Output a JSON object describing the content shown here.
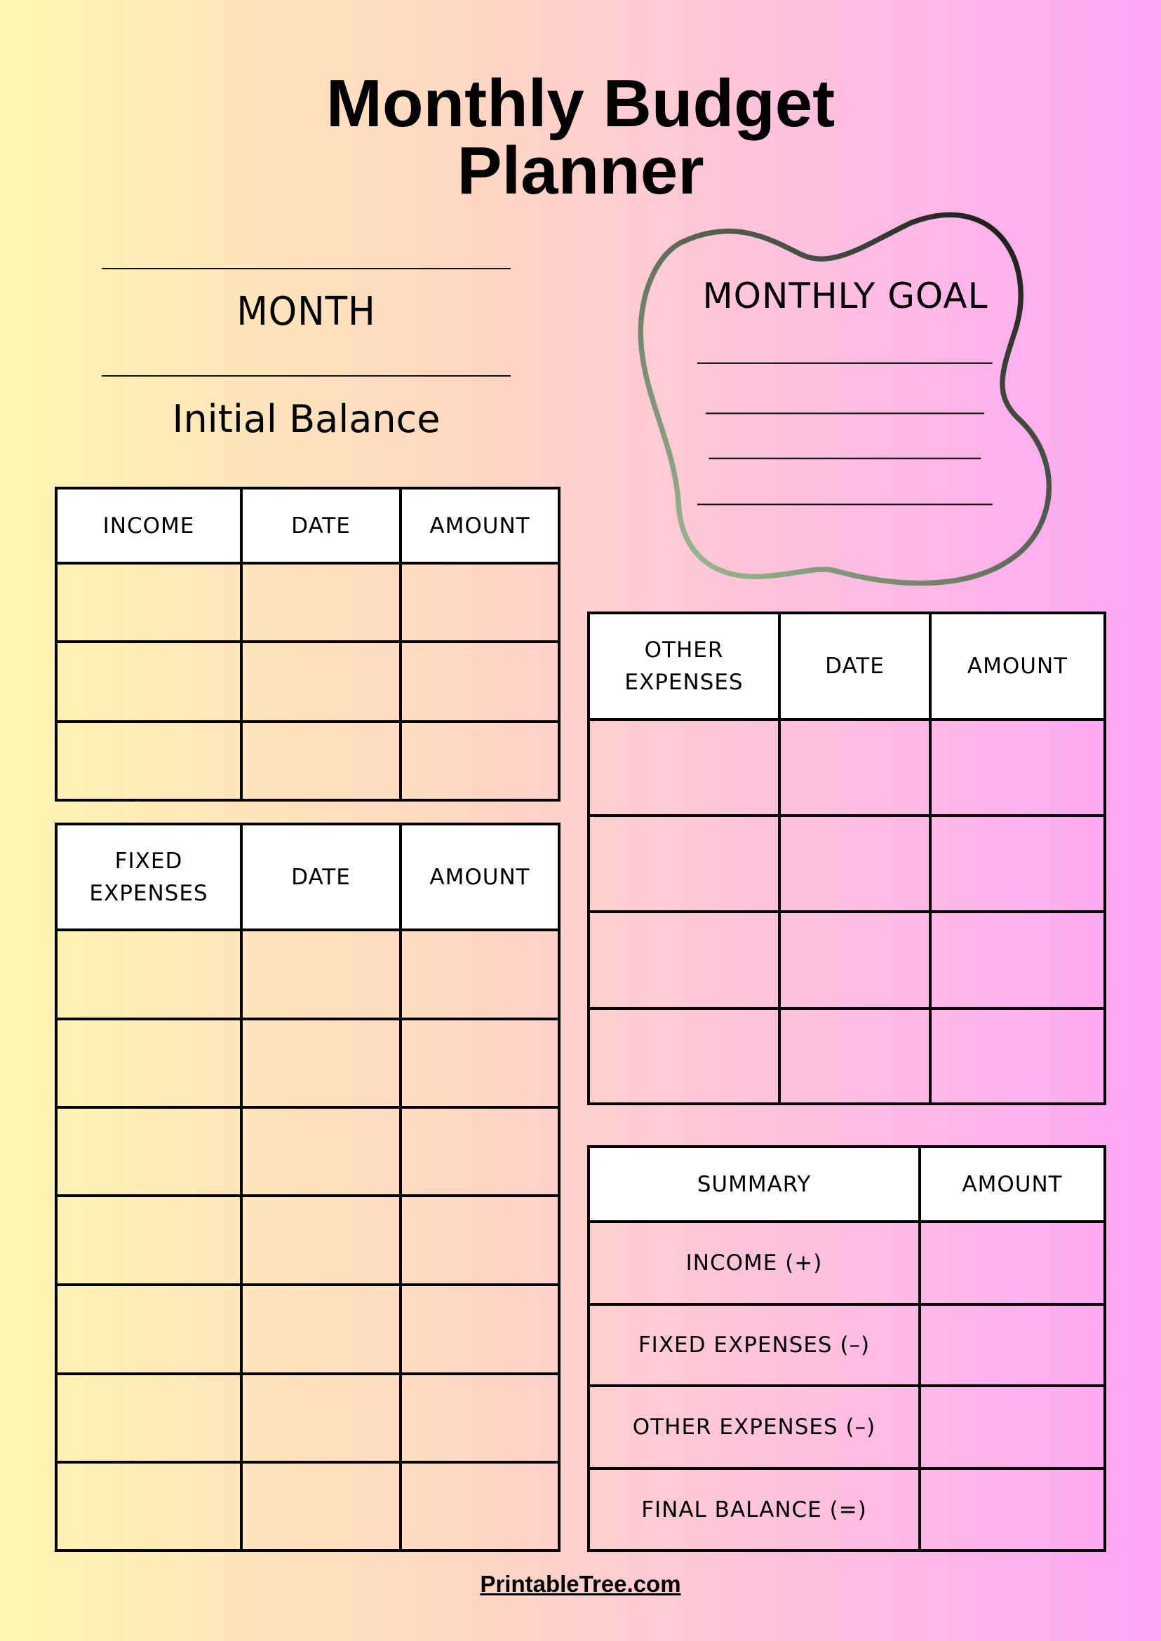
{
  "title": {
    "line1": "Monthly Budget",
    "line2": "Planner"
  },
  "month_label": "MONTH",
  "initial_balance_label": "Initial Balance",
  "monthly_goal": {
    "title": "MONTHLY GOAL"
  },
  "income_table": {
    "headers": [
      "INCOME",
      "DATE",
      "AMOUNT"
    ]
  },
  "fixed_table": {
    "headers": [
      "FIXED EXPENSES",
      "DATE",
      "AMOUNT"
    ]
  },
  "other_table": {
    "headers": [
      "OTHER EXPENSES",
      "DATE",
      "AMOUNT"
    ]
  },
  "summary_table": {
    "headers": [
      "SUMMARY",
      "AMOUNT"
    ],
    "rows": [
      "INCOME (+)",
      "FIXED EXPENSES (–)",
      "OTHER EXPENSES (–)",
      "FINAL BALANCE (=)"
    ]
  },
  "footer": "PrintableTree.com",
  "colors": {
    "bg_left": "#fef7b0",
    "bg_right": "#fda6f6",
    "blob_dark": "#111111",
    "blob_light": "#a8c69c"
  }
}
